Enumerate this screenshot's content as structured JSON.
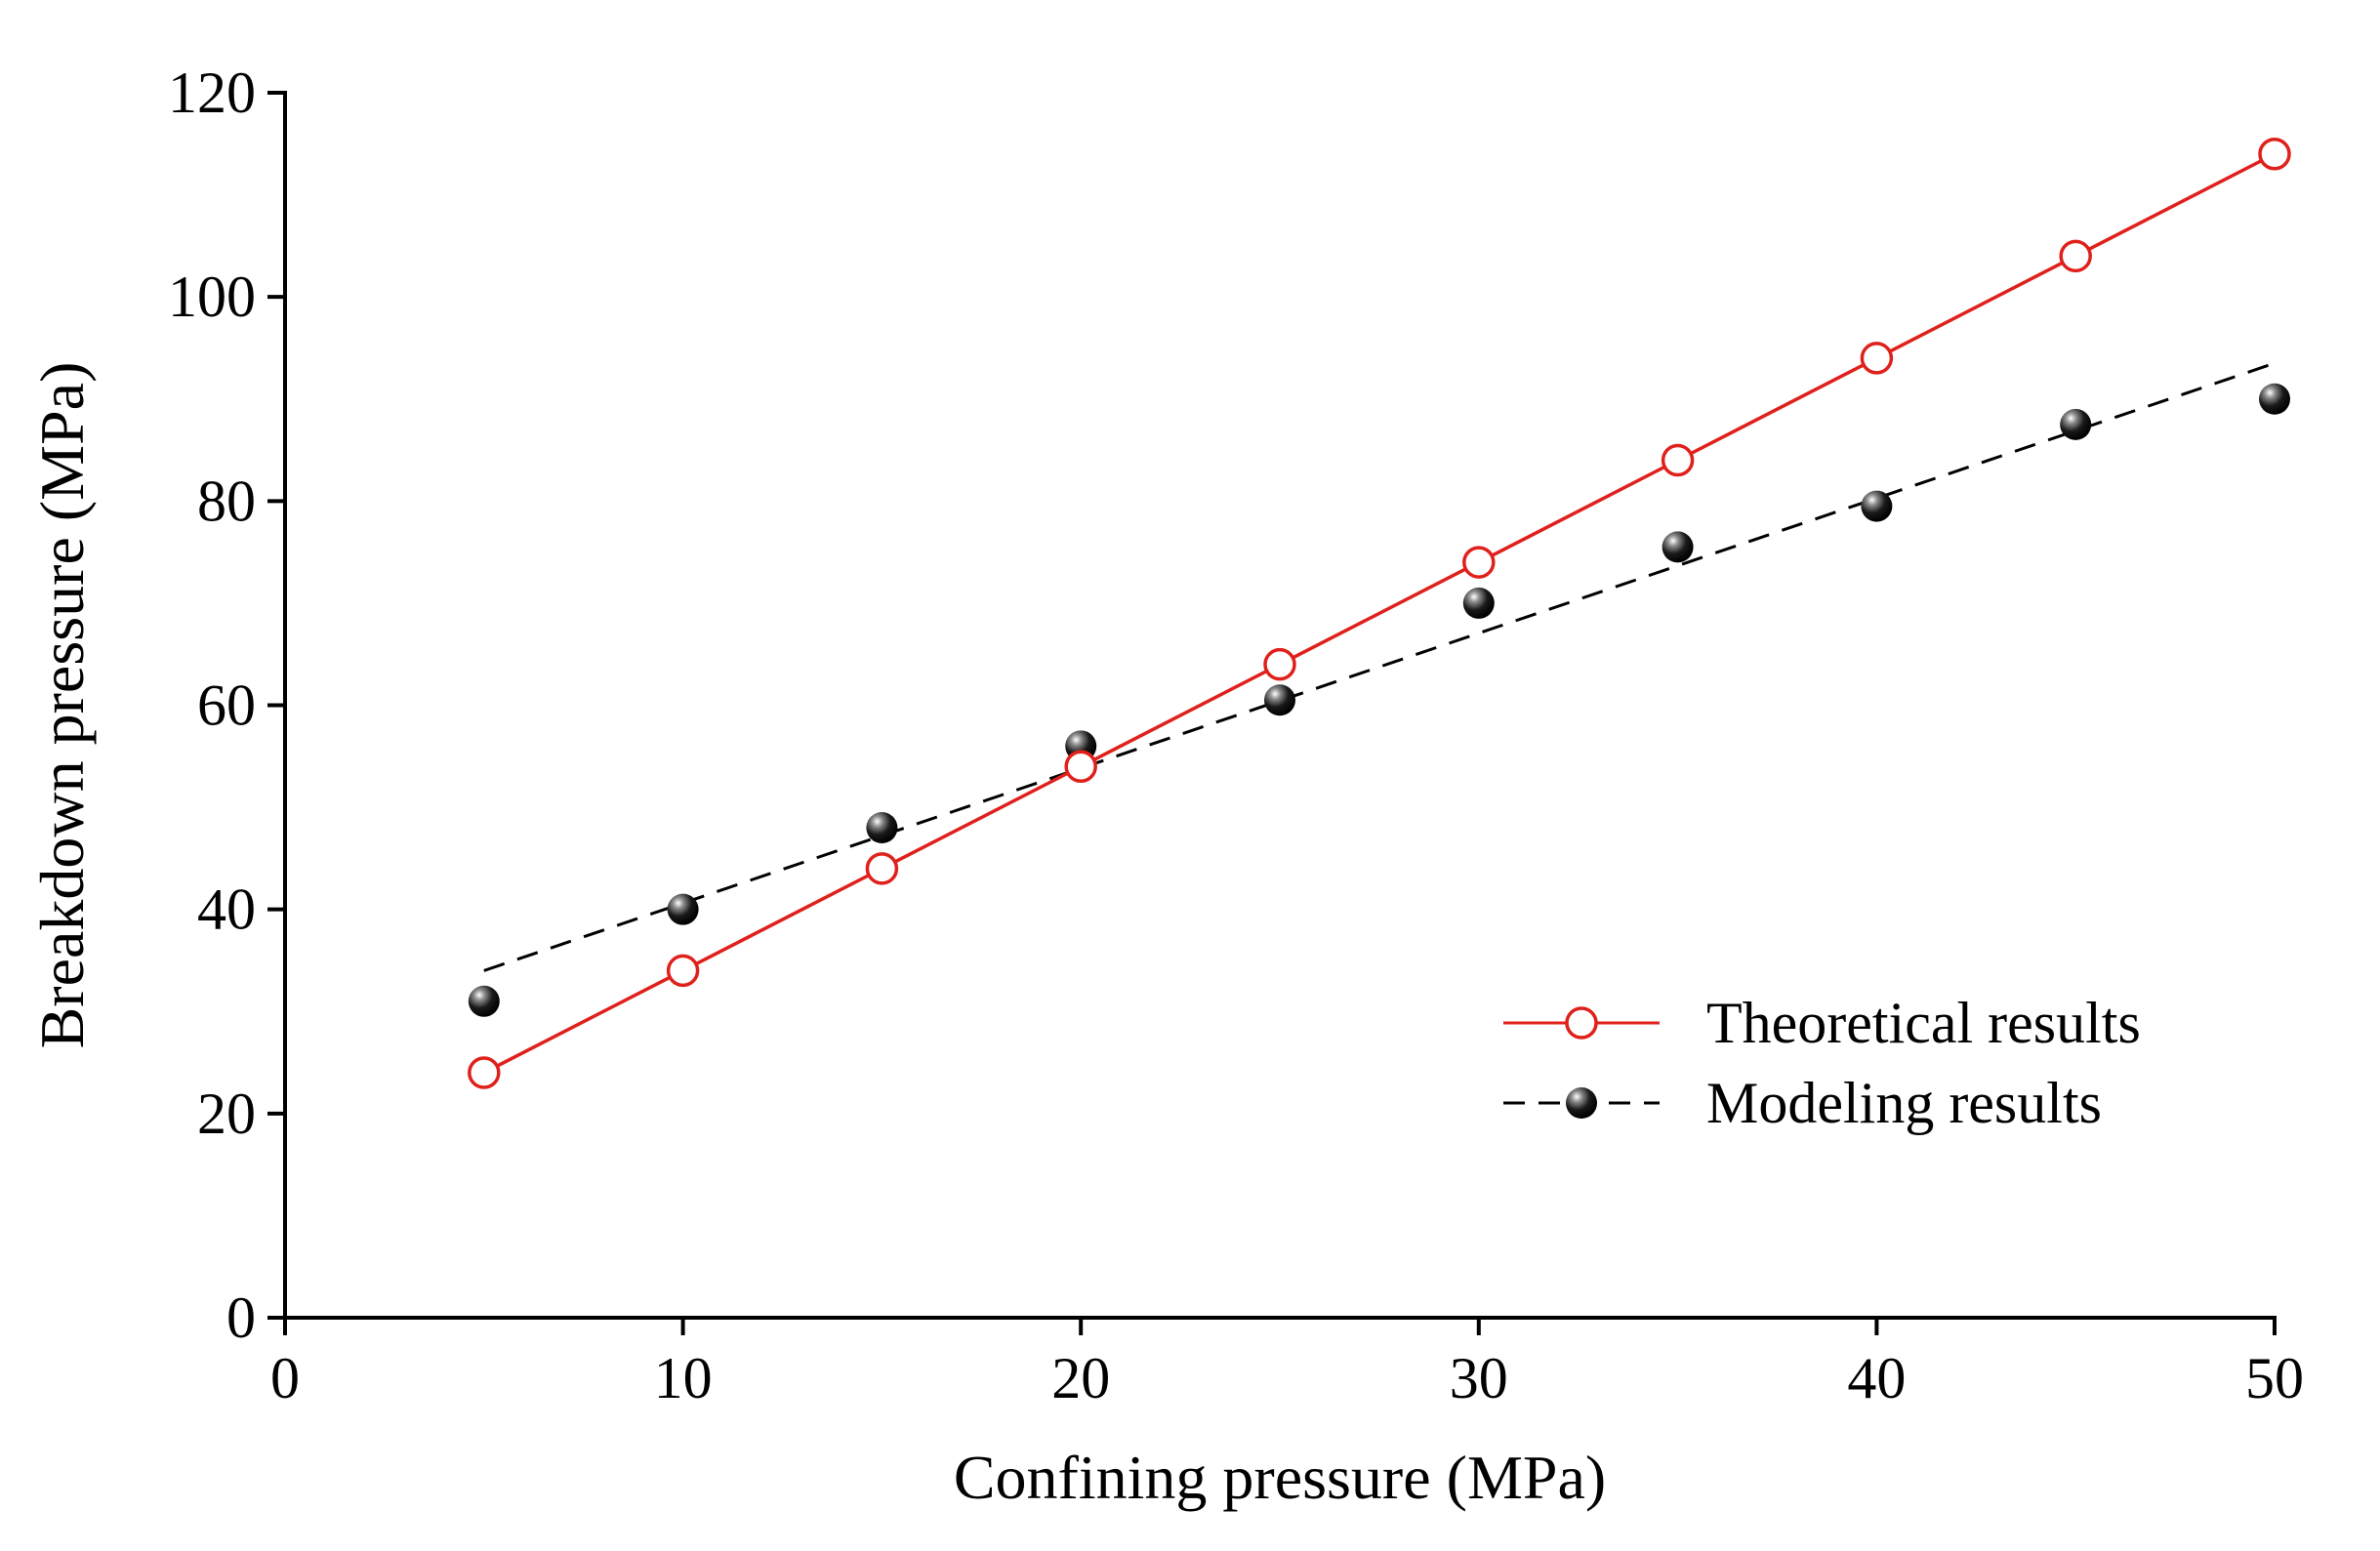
{
  "chart_data": {
    "type": "line",
    "xlabel": "Confining pressure (MPa)",
    "ylabel": "Breakdown pressure (MPa)",
    "xlim": [
      0,
      50
    ],
    "ylim": [
      0,
      120
    ],
    "xticks": [
      "0",
      "10",
      "20",
      "30",
      "40",
      "50"
    ],
    "yticks": [
      "0",
      "20",
      "40",
      "60",
      "80",
      "100",
      "120"
    ],
    "grid": false,
    "legend_position": "bottom-right",
    "series": [
      {
        "name": "Theoretical results",
        "style": "solid line, open circle markers",
        "color": "#e0201b",
        "x": [
          5,
          10,
          15,
          20,
          25,
          30,
          35,
          40,
          45,
          50
        ],
        "y": [
          24,
          34,
          44,
          54,
          64,
          74,
          84,
          94,
          104,
          114
        ]
      },
      {
        "name": "Modeling results",
        "style": "dashed trend line, filled sphere markers",
        "color": "#000000",
        "x": [
          5,
          10,
          15,
          20,
          25,
          30,
          35,
          40,
          45,
          50
        ],
        "y": [
          31,
          40,
          48,
          56,
          60.5,
          70,
          75.5,
          79.5,
          87.5,
          90
        ],
        "trendline": {
          "x": [
            5,
            50
          ],
          "y": [
            34,
            93.5
          ]
        }
      }
    ]
  }
}
